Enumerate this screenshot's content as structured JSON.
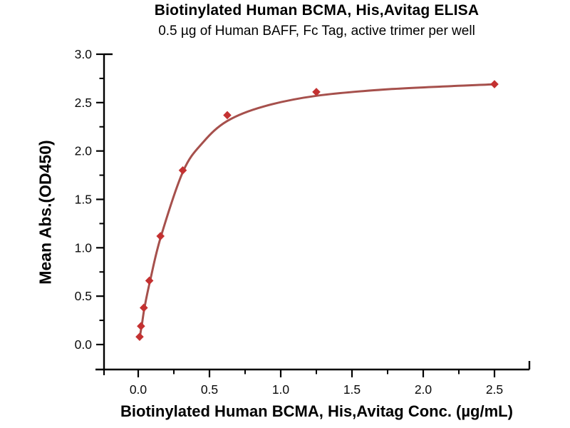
{
  "chart_data": {
    "type": "scatter",
    "title": "Biotinylated Human BCMA, His,Avitag ELISA",
    "subtitle": "0.5 µg of Human BAFF, Fc Tag, active trimer per well",
    "xlabel": "Biotinylated Human BCMA, His,Avitag Conc. (µg/mL)",
    "ylabel": "Mean Abs.(OD450)",
    "grid": false,
    "legend": "none",
    "background_color": "#ffffff",
    "axis_color": "#000000",
    "xlim": [
      -0.24,
      2.745
    ],
    "ylim": [
      -0.258,
      3.0
    ],
    "x_major_ticks": [
      0.0,
      0.5,
      1.0,
      1.5,
      2.0,
      2.5
    ],
    "x_tick_labels": [
      "0.0",
      "0.5",
      "1.0",
      "1.5",
      "2.0",
      "2.5"
    ],
    "x_minor_ticks": [
      0.25,
      0.75,
      1.25,
      1.75,
      2.25
    ],
    "y_major_ticks": [
      0.0,
      0.5,
      1.0,
      1.5,
      2.0,
      2.5,
      3.0
    ],
    "y_tick_labels": [
      "0.0",
      "0.5",
      "1.0",
      "1.5",
      "2.0",
      "2.5",
      "3.0"
    ],
    "y_minor_ticks": [
      0.25,
      0.75,
      1.25,
      1.75,
      2.25,
      2.75
    ],
    "series": [
      {
        "marker": "diamond",
        "marker_color": "#c43131",
        "line_color": "#a6504c",
        "points": [
          {
            "x": 0.0098,
            "y": 0.08
          },
          {
            "x": 0.0195,
            "y": 0.19
          },
          {
            "x": 0.039,
            "y": 0.38
          },
          {
            "x": 0.078,
            "y": 0.66
          },
          {
            "x": 0.156,
            "y": 1.12
          },
          {
            "x": 0.3125,
            "y": 1.8
          },
          {
            "x": 0.625,
            "y": 2.37
          },
          {
            "x": 1.25,
            "y": 2.61
          },
          {
            "x": 2.5,
            "y": 2.69
          }
        ],
        "fit_curve": [
          [
            0.01,
            0.07
          ],
          [
            0.025,
            0.2
          ],
          [
            0.045,
            0.39
          ],
          [
            0.085,
            0.67
          ],
          [
            0.16,
            1.12
          ],
          [
            0.315,
            1.79
          ],
          [
            0.455,
            2.09
          ],
          [
            0.625,
            2.31
          ],
          [
            0.88,
            2.46
          ],
          [
            1.25,
            2.57
          ],
          [
            1.78,
            2.64
          ],
          [
            2.505,
            2.69
          ]
        ]
      }
    ]
  }
}
